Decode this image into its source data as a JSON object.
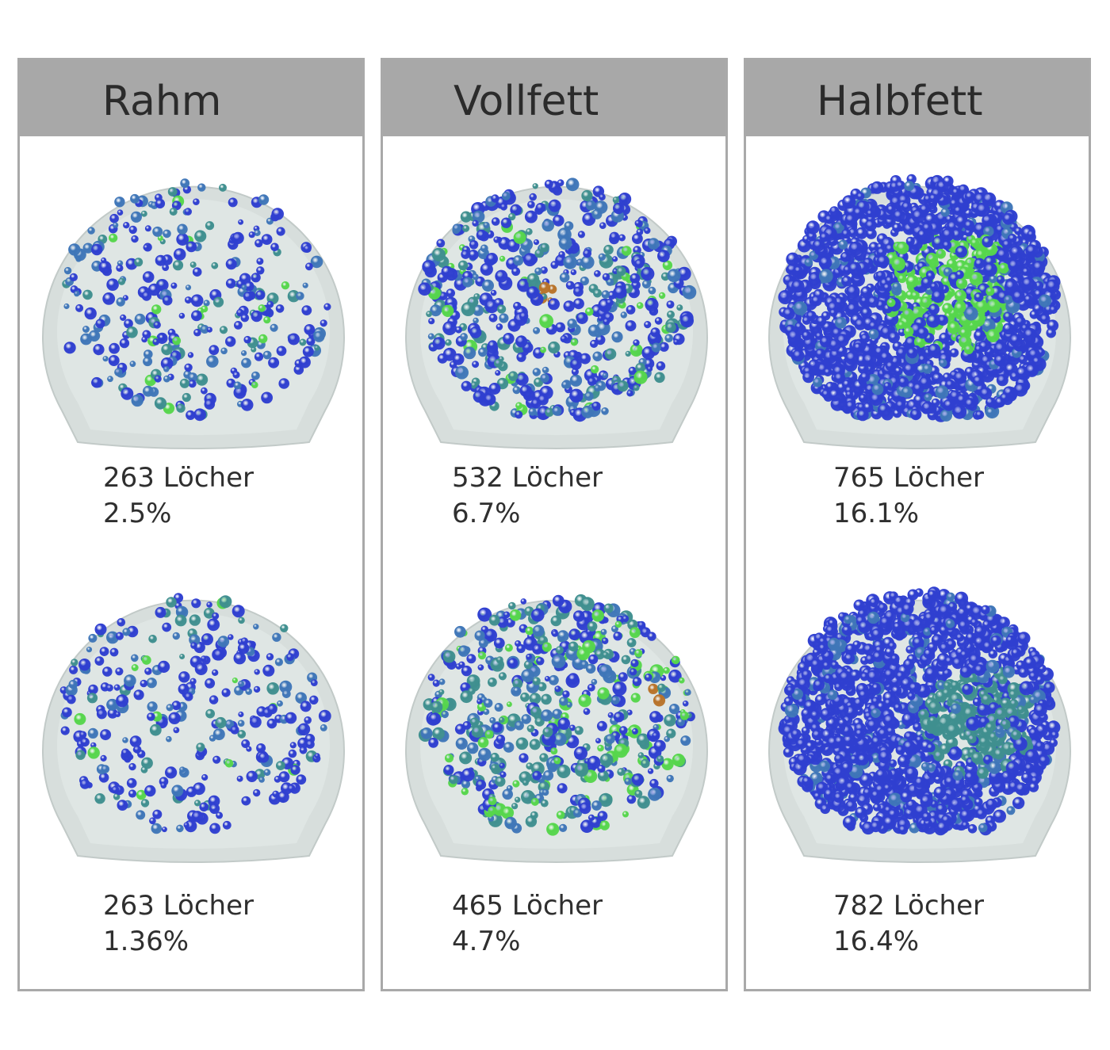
{
  "panels": [
    {
      "title": "Rahm",
      "samples": [
        {
          "holes": "263 Löcher",
          "percent": "2.5%",
          "density": 263,
          "palette": "sparse-mixed"
        },
        {
          "holes": "263 Löcher",
          "percent": "1.36%",
          "density": 263,
          "palette": "sparse-blue"
        }
      ]
    },
    {
      "title": "Vollfett",
      "samples": [
        {
          "holes": "532 Löcher",
          "percent": "6.7%",
          "density": 532,
          "palette": "dense-mixed"
        },
        {
          "holes": "465 Löcher",
          "percent": "4.7%",
          "density": 465,
          "palette": "dense-green"
        }
      ]
    },
    {
      "title": "Halbfett",
      "samples": [
        {
          "holes": "765 Löcher",
          "percent": "16.1%",
          "density": 765,
          "palette": "packed-lime"
        },
        {
          "holes": "782 Löcher",
          "percent": "16.4%",
          "density": 782,
          "palette": "packed-teal"
        }
      ]
    }
  ],
  "colors": {
    "header_bg": "#a8a8a8",
    "border": "#a9a9a9",
    "cheese_shell": "#d7dedc",
    "hole_blue": "#2f3fd0",
    "hole_steel": "#3f76b8",
    "hole_teal": "#3f8f8f",
    "hole_green": "#56d64c",
    "hole_brown": "#b8732a"
  }
}
